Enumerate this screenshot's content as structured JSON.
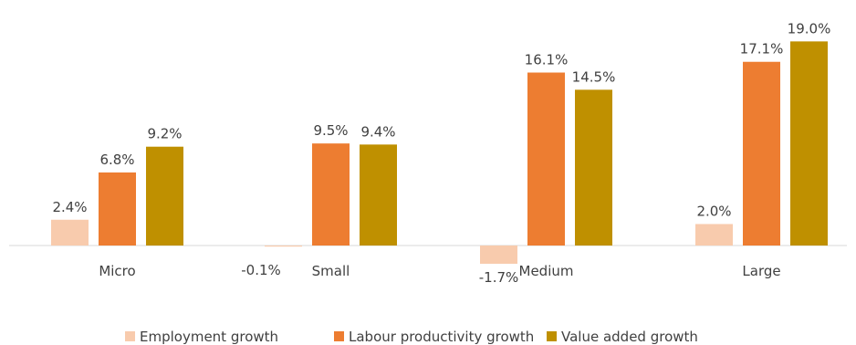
{
  "chart_data": {
    "type": "bar",
    "categories": [
      "Micro",
      "Small",
      "Medium",
      "Large"
    ],
    "series": [
      {
        "name": "Employment growth",
        "values": [
          2.4,
          -0.1,
          -1.7,
          2.0
        ],
        "labels": [
          "2.4%",
          "-0.1%",
          "-1.7%",
          "2.0%"
        ],
        "color": "#F8CBAD"
      },
      {
        "name": "Labour productivity growth",
        "values": [
          6.8,
          9.5,
          16.1,
          17.1
        ],
        "labels": [
          "6.8%",
          "9.5%",
          "16.1%",
          "17.1%"
        ],
        "color": "#ED7D31"
      },
      {
        "name": "Value added growth",
        "values": [
          9.2,
          9.4,
          14.5,
          19.0
        ],
        "labels": [
          "9.2%",
          "9.4%",
          "14.5%",
          "19.0%"
        ],
        "color": "#BF9000"
      }
    ],
    "axis_line_color": "#D9D9D9",
    "legend_position": "bottom",
    "grid": false
  }
}
